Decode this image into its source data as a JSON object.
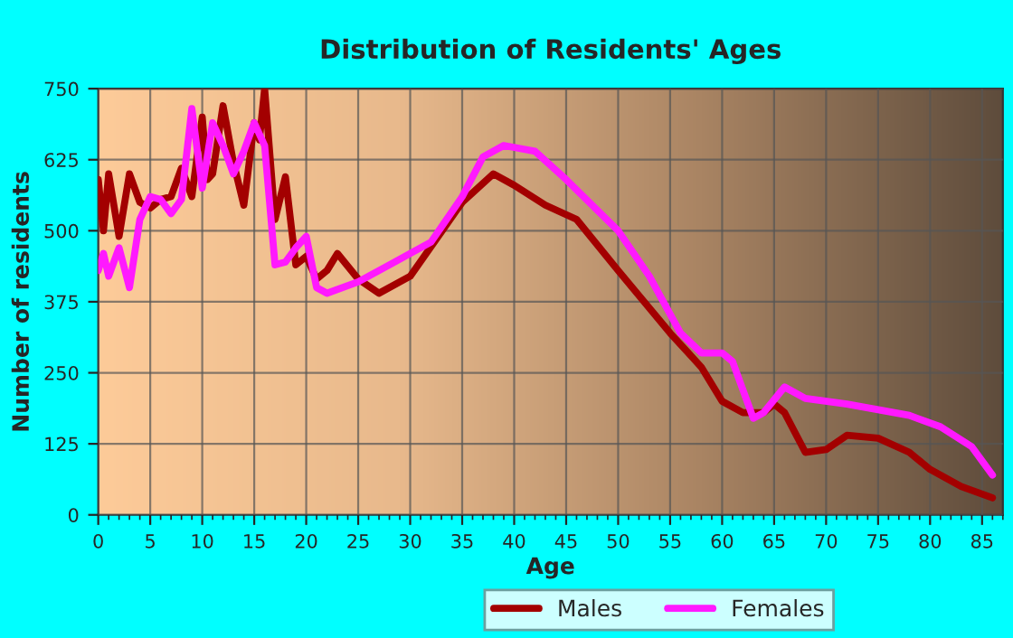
{
  "chart_data": {
    "type": "line",
    "title": "Distribution of Residents' Ages",
    "xlabel": "Age",
    "ylabel": "Number of residents",
    "xlim": [
      0,
      87
    ],
    "xticks": [
      0,
      5,
      10,
      15,
      20,
      25,
      30,
      35,
      40,
      45,
      50,
      55,
      60,
      65,
      70,
      75,
      80,
      85
    ],
    "ylim": [
      0,
      750
    ],
    "yticks": [
      0,
      125,
      250,
      375,
      500,
      625,
      750
    ],
    "grid": true,
    "legend": "bottom",
    "line_style": "solid",
    "marker": "none",
    "series": [
      {
        "name": "Males",
        "color": "#a30000",
        "x": [
          0,
          0.5,
          1,
          2,
          3,
          4,
          5,
          6,
          7,
          8,
          9,
          10,
          10.5,
          11,
          12,
          13,
          14,
          15,
          15.5,
          16,
          17,
          18,
          19,
          20,
          21,
          22,
          23,
          25,
          27,
          30,
          35,
          38,
          40,
          43,
          46,
          50,
          55,
          58,
          60,
          62,
          64,
          65,
          66,
          68,
          70,
          72,
          75,
          78,
          80,
          83,
          86
        ],
        "values": [
          590,
          500,
          600,
          490,
          600,
          550,
          540,
          555,
          560,
          610,
          560,
          700,
          590,
          600,
          720,
          620,
          545,
          690,
          660,
          750,
          520,
          595,
          440,
          455,
          415,
          430,
          460,
          415,
          390,
          420,
          550,
          600,
          580,
          545,
          520,
          430,
          320,
          260,
          200,
          180,
          180,
          195,
          180,
          110,
          115,
          140,
          135,
          110,
          80,
          50,
          30
        ]
      },
      {
        "name": "Females",
        "color": "#ff19ff",
        "x": [
          0,
          0.5,
          1,
          2,
          3,
          4,
          5,
          6,
          7,
          8,
          9,
          10,
          11,
          12,
          13,
          14,
          15,
          16,
          17,
          18,
          19,
          20,
          21,
          22,
          25,
          28,
          32,
          35,
          37,
          39,
          42,
          45,
          50,
          53,
          56,
          58,
          60,
          61,
          63,
          64,
          66,
          68,
          72,
          75,
          78,
          81,
          84,
          86
        ],
        "values": [
          430,
          460,
          420,
          470,
          400,
          520,
          560,
          555,
          530,
          555,
          715,
          575,
          690,
          650,
          600,
          640,
          690,
          650,
          440,
          445,
          470,
          490,
          400,
          390,
          410,
          440,
          480,
          560,
          630,
          650,
          640,
          590,
          500,
          420,
          320,
          285,
          285,
          270,
          170,
          180,
          225,
          205,
          195,
          185,
          175,
          155,
          120,
          70
        ]
      }
    ]
  }
}
